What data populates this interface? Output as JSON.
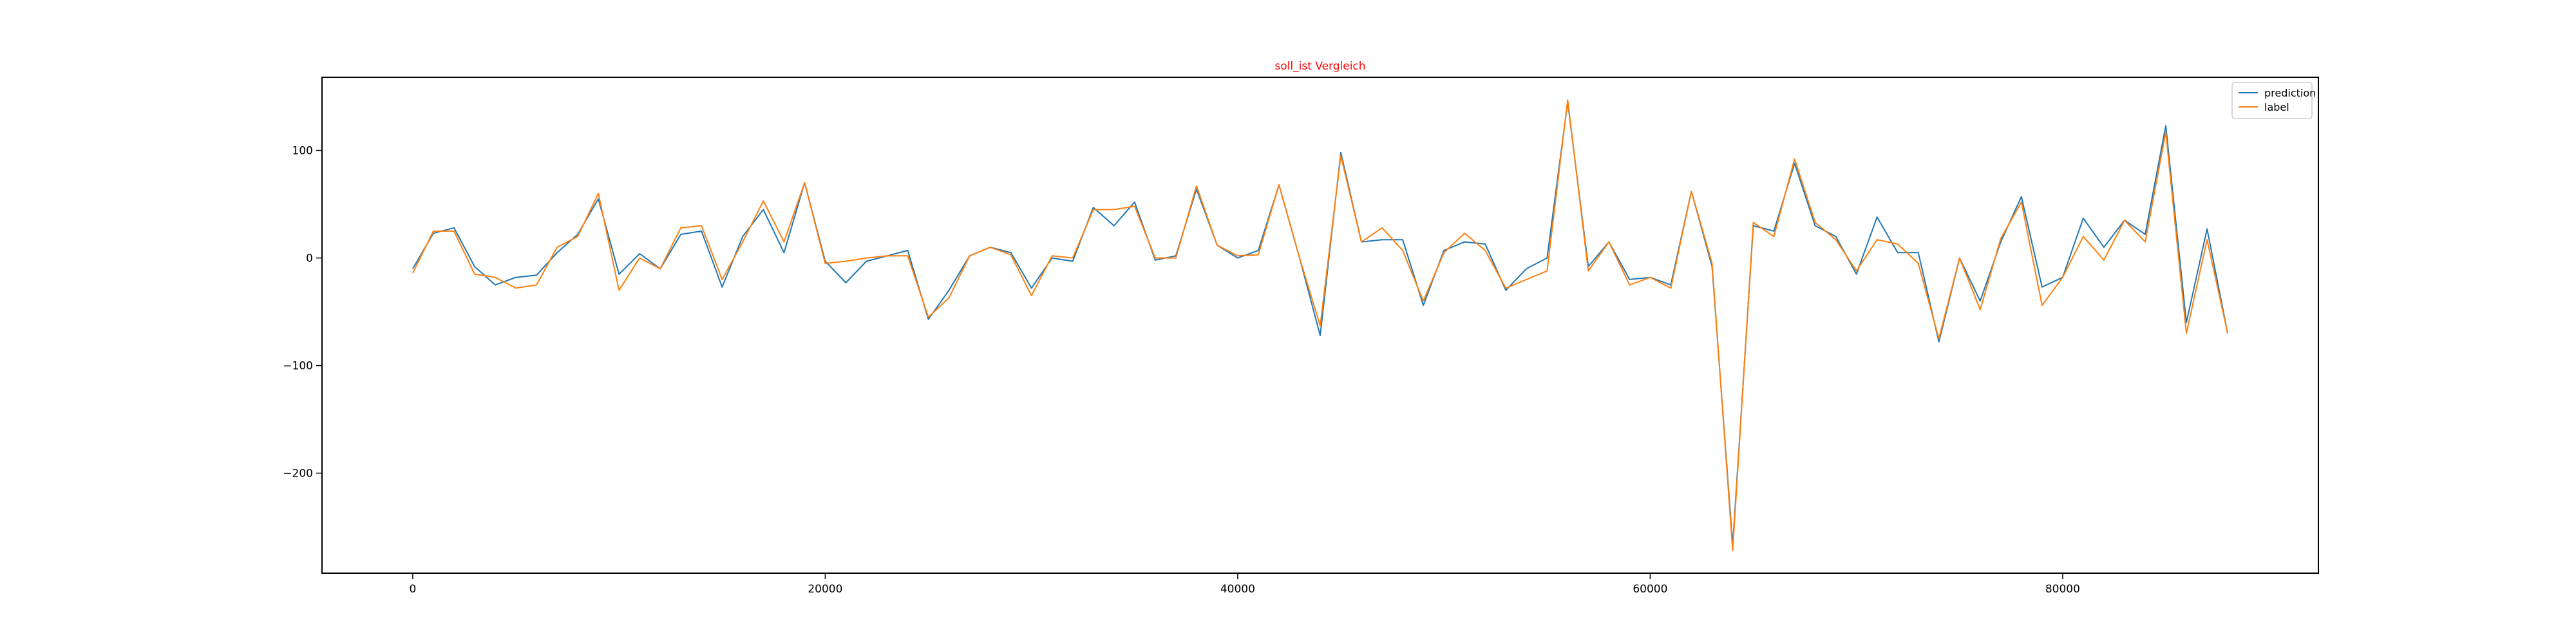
{
  "chart_data": {
    "type": "line",
    "title": "soll_ist Vergleich",
    "title_color": "#ff0000",
    "xlabel": "",
    "ylabel": "",
    "xlim": [
      -4400,
      92400
    ],
    "ylim": [
      -293,
      168
    ],
    "x_ticks": [
      0,
      20000,
      40000,
      60000,
      80000
    ],
    "x_tick_labels": [
      "0",
      "20000",
      "40000",
      "60000",
      "80000"
    ],
    "y_ticks": [
      100,
      0,
      -100,
      -200
    ],
    "y_tick_labels": [
      "100",
      "0",
      "−100",
      "−200"
    ],
    "grid": false,
    "legend_position": "top-right",
    "x": [
      0,
      1000,
      2000,
      3000,
      4000,
      5000,
      6000,
      7000,
      8000,
      9000,
      10000,
      11000,
      12000,
      13000,
      14000,
      15000,
      16000,
      17000,
      18000,
      19000,
      20000,
      21000,
      22000,
      23000,
      24000,
      25000,
      26000,
      27000,
      28000,
      29000,
      30000,
      31000,
      32000,
      33000,
      34000,
      35000,
      36000,
      37000,
      38000,
      39000,
      40000,
      41000,
      42000,
      43000,
      44000,
      45000,
      46000,
      47000,
      48000,
      49000,
      50000,
      51000,
      52000,
      53000,
      54000,
      55000,
      56000,
      57000,
      58000,
      59000,
      60000,
      61000,
      62000,
      63000,
      64000,
      65000,
      66000,
      67000,
      68000,
      69000,
      70000,
      71000,
      72000,
      73000,
      74000,
      75000,
      76000,
      77000,
      78000,
      79000,
      80000,
      81000,
      82000,
      83000,
      84000,
      85000,
      86000,
      87000,
      88000
    ],
    "series": [
      {
        "name": "prediction",
        "color": "#1f77b4",
        "values": [
          -10,
          23,
          28,
          -8,
          -25,
          -18,
          -16,
          5,
          22,
          55,
          -15,
          4,
          -10,
          22,
          25,
          -27,
          20,
          45,
          5,
          70,
          -3,
          -23,
          -3,
          2,
          7,
          -57,
          -30,
          2,
          10,
          5,
          -28,
          0,
          -3,
          47,
          30,
          52,
          -2,
          2,
          64,
          12,
          0,
          7,
          68,
          0,
          -72,
          98,
          15,
          17,
          17,
          -44,
          7,
          15,
          13,
          -30,
          -10,
          0,
          145,
          -8,
          15,
          -20,
          -18,
          -25,
          62,
          -8,
          -267,
          30,
          25,
          88,
          30,
          20,
          -15,
          38,
          5,
          5,
          -78,
          0,
          -40,
          15,
          57,
          -27,
          -18,
          37,
          10,
          35,
          22,
          123,
          -60,
          27,
          -70
        ]
      },
      {
        "name": "label",
        "color": "#ff7f0e",
        "values": [
          -14,
          25,
          25,
          -15,
          -18,
          -28,
          -25,
          10,
          20,
          60,
          -30,
          0,
          -10,
          28,
          30,
          -20,
          15,
          53,
          15,
          70,
          -5,
          -3,
          0,
          2,
          2,
          -55,
          -37,
          2,
          10,
          3,
          -35,
          2,
          0,
          45,
          45,
          48,
          0,
          0,
          67,
          12,
          2,
          3,
          68,
          0,
          -63,
          95,
          15,
          28,
          7,
          -40,
          5,
          23,
          7,
          -28,
          -20,
          -12,
          147,
          -12,
          15,
          -25,
          -18,
          -28,
          62,
          -5,
          -272,
          33,
          20,
          92,
          33,
          17,
          -12,
          17,
          13,
          -5,
          -75,
          0,
          -48,
          18,
          52,
          -44,
          -18,
          20,
          -2,
          35,
          15,
          117,
          -70,
          17,
          -70
        ]
      }
    ]
  }
}
